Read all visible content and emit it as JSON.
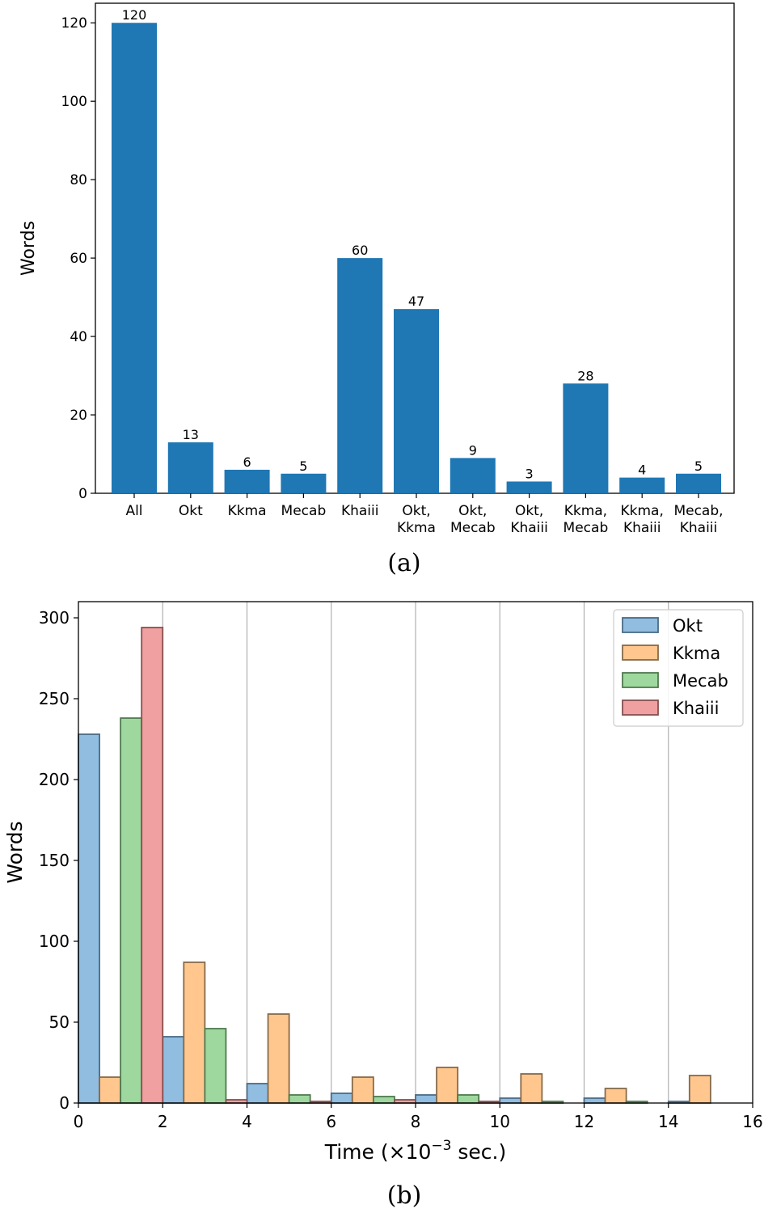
{
  "panels": {
    "a_label": "(a)",
    "b_label": "(b)"
  },
  "chart_data": [
    {
      "type": "bar",
      "ylabel": "Words",
      "xlabel": "",
      "ylim": [
        0,
        125
      ],
      "yticks": [
        0,
        20,
        40,
        60,
        80,
        100,
        120
      ],
      "categories": [
        [
          "All"
        ],
        [
          "Okt"
        ],
        [
          "Kkma"
        ],
        [
          "Mecab"
        ],
        [
          "Khaiii"
        ],
        [
          "Okt,",
          "Kkma"
        ],
        [
          "Okt,",
          "Mecab"
        ],
        [
          "Okt,",
          "Khaiii"
        ],
        [
          "Kkma,",
          "Mecab"
        ],
        [
          "Kkma,",
          "Khaiii"
        ],
        [
          "Mecab,",
          "Khaiii"
        ]
      ],
      "values": [
        120,
        13,
        6,
        5,
        60,
        47,
        9,
        3,
        28,
        4,
        5
      ],
      "data_labels": [
        "120",
        "13",
        "6",
        "5",
        "60",
        "47",
        "9",
        "3",
        "28",
        "4",
        "5"
      ],
      "color": "#1f77b4",
      "grid": false
    },
    {
      "type": "bar",
      "ylabel": "Words",
      "xlabel_main": "Time (×10",
      "xlabel_exp": "−3",
      "xlabel_tail": " sec.)",
      "xlim": [
        0,
        16
      ],
      "ylim": [
        0,
        310
      ],
      "xticks": [
        0,
        2,
        4,
        6,
        8,
        10,
        12,
        14,
        16
      ],
      "yticks": [
        0,
        50,
        100,
        150,
        200,
        250,
        300
      ],
      "bin_starts": [
        0,
        2,
        4,
        6,
        8,
        10,
        12,
        14
      ],
      "bin_width": 2,
      "grid": "vertical",
      "legend_position": "top-right",
      "series": [
        {
          "name": "Okt",
          "color": "#90bde0",
          "edge": "#4a6b86",
          "values": [
            228,
            41,
            12,
            6,
            5,
            3,
            3,
            1
          ]
        },
        {
          "name": "Kkma",
          "color": "#ffc78e",
          "edge": "#866a4a",
          "values": [
            16,
            87,
            55,
            16,
            22,
            18,
            9,
            17
          ]
        },
        {
          "name": "Mecab",
          "color": "#9fd89f",
          "edge": "#4f7a4f",
          "values": [
            238,
            46,
            5,
            4,
            5,
            1,
            1,
            0
          ]
        },
        {
          "name": "Khaiii",
          "color": "#f0a0a0",
          "edge": "#865050",
          "values": [
            294,
            2,
            1,
            2,
            1,
            0,
            0,
            0
          ]
        }
      ]
    }
  ]
}
